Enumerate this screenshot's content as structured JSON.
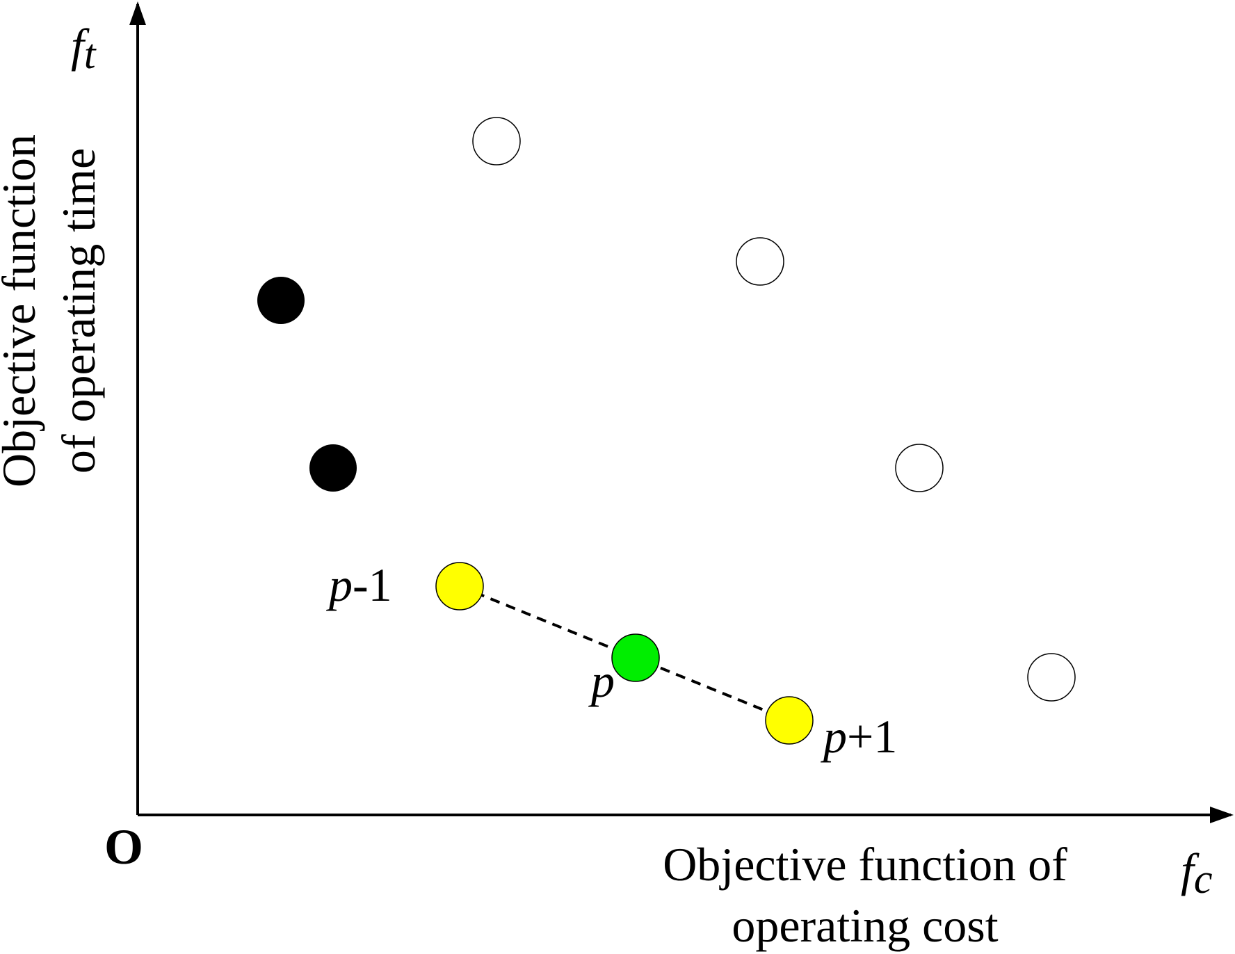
{
  "axes": {
    "origin": "O",
    "y_axis": {
      "symbol": "f",
      "subscript": "t",
      "label_lines": [
        "Objective function",
        "of operating time"
      ]
    },
    "x_axis": {
      "symbol": "f",
      "subscript": "c",
      "label_lines": [
        "Objective function of",
        "operating cost"
      ]
    }
  },
  "points": {
    "previous": {
      "symbol": "p",
      "suffix": "-1"
    },
    "current": {
      "symbol": "p"
    },
    "next": {
      "symbol": "p",
      "suffix": "+1"
    }
  }
}
